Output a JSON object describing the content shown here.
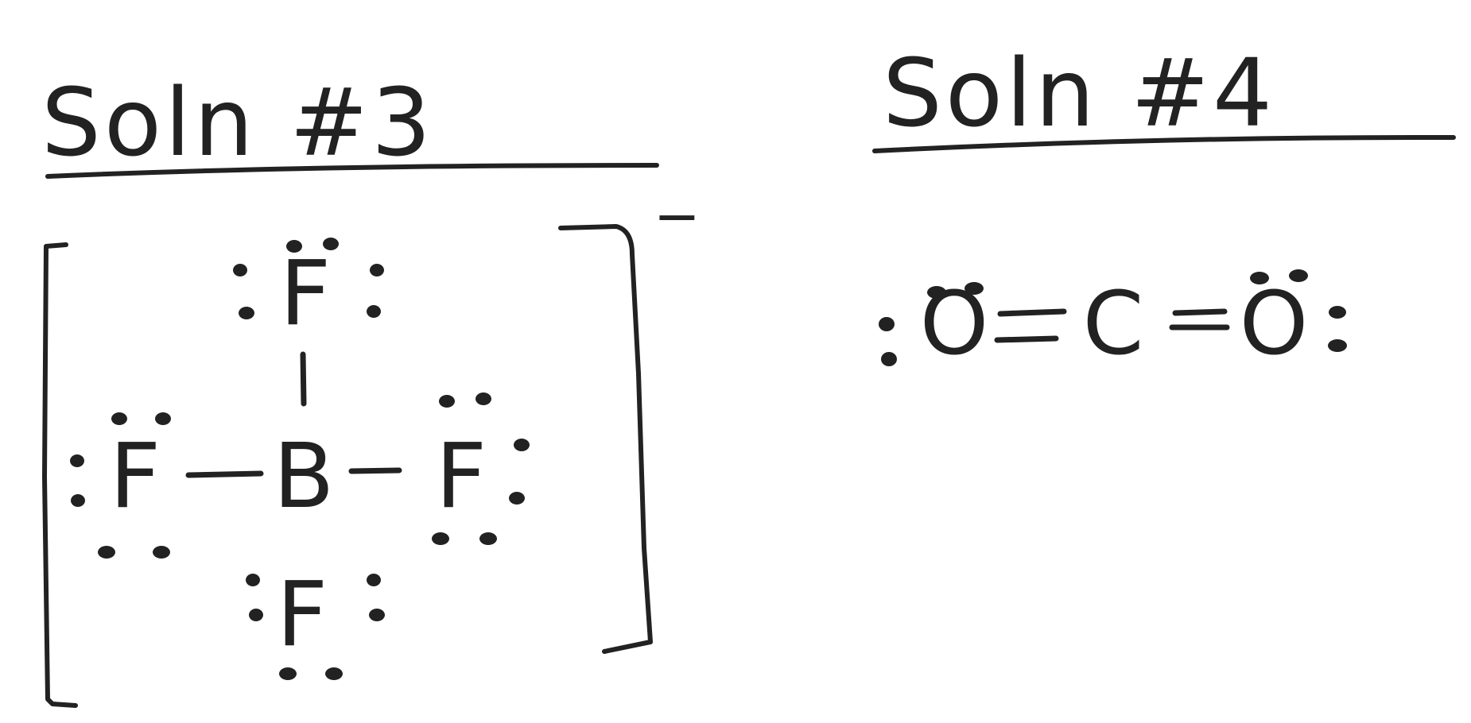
{
  "colors": {
    "ink": "#222222",
    "background": "#ffffff"
  },
  "solutions": [
    {
      "heading": "Soln #3",
      "charge": "−",
      "atoms": {
        "center": "B",
        "top": "F",
        "left": "F",
        "right": "F",
        "bottom": "F"
      }
    },
    {
      "heading": "Soln #4",
      "atoms": {
        "left": "O",
        "center": "C",
        "right": "O"
      }
    }
  ]
}
